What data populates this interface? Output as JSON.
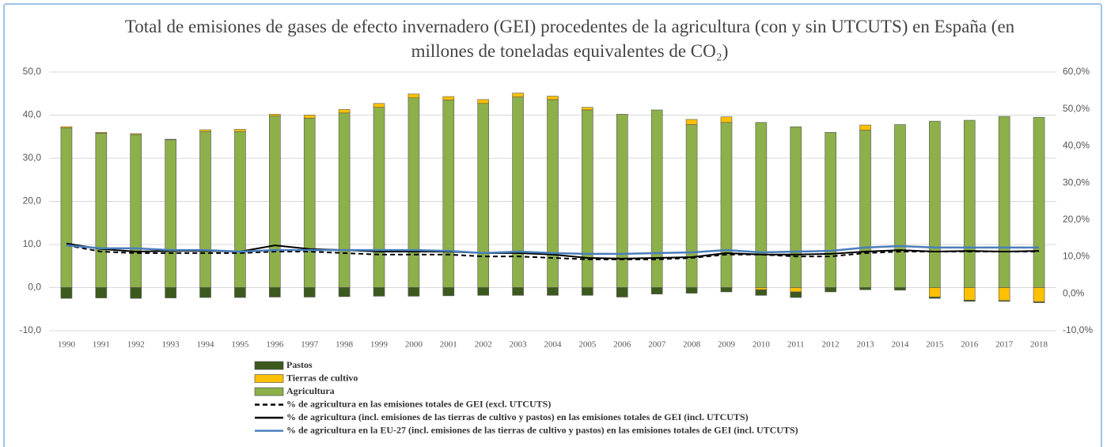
{
  "chart_data": {
    "type": "bar",
    "title": "Total de emisiones de gases de efecto invernadero (GEI) procedentes de la agricultura (con y sin UTCUTS) en España (en millones de toneladas equivalentes de CO₂)",
    "categories": [
      "1990",
      "1991",
      "1992",
      "1993",
      "1994",
      "1995",
      "1996",
      "1997",
      "1998",
      "1999",
      "2000",
      "2001",
      "2002",
      "2003",
      "2004",
      "2005",
      "2006",
      "2007",
      "2008",
      "2009",
      "2010",
      "2011",
      "2012",
      "2013",
      "2014",
      "2015",
      "2016",
      "2017",
      "2018"
    ],
    "stacked": true,
    "series": [
      {
        "name": "Pastos",
        "type": "bar",
        "color": "#3d5a1e",
        "values": [
          -2.5,
          -2.4,
          -2.5,
          -2.4,
          -2.3,
          -2.3,
          -2.2,
          -2.2,
          -2.1,
          -2.0,
          -2.0,
          -1.9,
          -1.8,
          -1.8,
          -1.8,
          -1.8,
          -2.2,
          -1.5,
          -1.3,
          -1.0,
          -1.3,
          -1.3,
          -1.0,
          -0.5,
          -0.6,
          -0.3,
          -0.3,
          -0.2,
          -0.2
        ]
      },
      {
        "name": "Tierras de cultivo",
        "type": "bar",
        "color": "#ffc000",
        "values": [
          0.3,
          0.2,
          0.2,
          0.1,
          0.4,
          0.5,
          0.4,
          0.7,
          0.8,
          0.9,
          0.9,
          0.8,
          0.9,
          0.9,
          0.8,
          0.6,
          0,
          0,
          1.2,
          1.3,
          -0.5,
          -1.0,
          0,
          1.2,
          0,
          -2.2,
          -2.9,
          -3.0,
          -3.3
        ]
      },
      {
        "name": "Agricultura",
        "type": "bar",
        "color": "#8db04a",
        "values": [
          37,
          35.8,
          35.5,
          34.3,
          36.2,
          36.2,
          39.8,
          39.3,
          40.5,
          41.8,
          44,
          43.5,
          42.7,
          44.2,
          43.6,
          41.2,
          40.2,
          41.2,
          37.8,
          38.3,
          38.3,
          37.3,
          36,
          36.5,
          37.8,
          38.6,
          38.8,
          39.7,
          39.5
        ]
      },
      {
        "name": "% de agricultura en las emisiones totales de GEI (excl. UTCUTS)",
        "type": "line",
        "axis": "y2",
        "color": "#000000",
        "dashed": true,
        "values": [
          13.1,
          11.4,
          11.0,
          11.0,
          11.0,
          11.0,
          11.4,
          11.4,
          11.0,
          10.6,
          10.6,
          10.6,
          10.1,
          10.1,
          9.7,
          9.3,
          9.3,
          9.3,
          9.7,
          10.6,
          10.6,
          10.1,
          10.1,
          11.0,
          11.4,
          11.4,
          11.4,
          11.4,
          11.4
        ]
      },
      {
        "name": "% de agricultura (incl. emisiones de las tierras de cultivo y pastos) en las emisiones totales de GEI (incl. UTCUTS)",
        "type": "line",
        "axis": "y2",
        "color": "#000000",
        "dashed": false,
        "values": [
          13.6,
          12.1,
          11.4,
          11.6,
          11.6,
          11.4,
          13.1,
          12.1,
          11.8,
          11.4,
          11.4,
          11.4,
          11.0,
          11.0,
          10.6,
          9.7,
          9.5,
          9.7,
          9.9,
          11.0,
          10.6,
          10.6,
          10.8,
          11.4,
          11.8,
          11.4,
          11.6,
          11.4,
          11.6
        ]
      },
      {
        "name": "% de agricultura en la EU-27 (incl. emisiones de las tierras de cultivo y pastos) en las emisiones totales de GEI (incl. UTCUTS)",
        "type": "line",
        "axis": "y2",
        "color": "#4a7ebb",
        "dashed": false,
        "values": [
          13.1,
          12.3,
          12.3,
          11.8,
          11.8,
          11.4,
          11.8,
          11.8,
          11.8,
          11.8,
          11.8,
          11.6,
          11.0,
          11.4,
          11.0,
          10.8,
          10.8,
          11.0,
          11.2,
          11.8,
          11.2,
          11.4,
          11.6,
          12.5,
          12.9,
          12.5,
          12.5,
          12.5,
          12.5
        ]
      }
    ],
    "ylim": [
      -10,
      50
    ],
    "yticks": [
      {
        "value": -10,
        "label": "-10,0"
      },
      {
        "value": 0,
        "label": "0,0"
      },
      {
        "value": 10,
        "label": "10,0"
      },
      {
        "value": 20,
        "label": "20,0"
      },
      {
        "value": 30,
        "label": "30,0"
      },
      {
        "value": 40,
        "label": "40,0"
      },
      {
        "value": 50,
        "label": "50,0"
      }
    ],
    "y2lim": [
      -10,
      60
    ],
    "y2ticks": [
      {
        "value": -10,
        "label": "-10,0%"
      },
      {
        "value": 0,
        "label": "0,0%"
      },
      {
        "value": 10,
        "label": "10,0%"
      },
      {
        "value": 20,
        "label": "20,0%"
      },
      {
        "value": 30,
        "label": "30,0%"
      },
      {
        "value": 40,
        "label": "40,0%"
      },
      {
        "value": 50,
        "label": "50,0%"
      },
      {
        "value": 60,
        "label": "60,0%"
      }
    ],
    "grid": true
  }
}
